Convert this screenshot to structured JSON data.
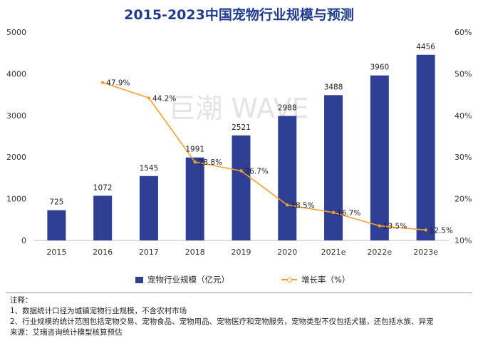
{
  "chart_data": {
    "type": "bar",
    "title": "2015-2023中国宠物行业规模与预测",
    "categories": [
      "2015",
      "2016",
      "2017",
      "2018",
      "2019",
      "2020",
      "2021e",
      "2022e",
      "2023e"
    ],
    "series": [
      {
        "name": "宠物行业规模（亿元）",
        "type": "bar",
        "axis": "left",
        "values": [
          725,
          1072,
          1545,
          1991,
          2521,
          2988,
          3488,
          3960,
          4456
        ],
        "color": "#2f3f94"
      },
      {
        "name": "增长率（%）",
        "type": "line",
        "axis": "right",
        "values": [
          null,
          47.9,
          44.2,
          28.8,
          26.7,
          18.5,
          16.7,
          13.5,
          12.5
        ],
        "labels": [
          "",
          "47.9%",
          "44.2%",
          "28.8%",
          "26.7%",
          "18.5%",
          "16.7%",
          "13.5%",
          "12.5%"
        ],
        "color": "#f5a02a"
      }
    ],
    "ylim": [
      0,
      5000
    ],
    "yticks": [
      "0",
      "1000",
      "2000",
      "3000",
      "4000",
      "5000"
    ],
    "y2lim": [
      10,
      60
    ],
    "y2ticks": [
      "10%",
      "20%",
      "30%",
      "40%",
      "50%",
      "60%"
    ],
    "legend_position": "bottom",
    "grid": false,
    "watermark": "巨潮 WAVE"
  },
  "notes": {
    "heading": "注释：",
    "line1": "1、数据统计口径为城镇宠物行业规模，不含农村市场",
    "line2": "2、行业规模的统计范围包括宠物交易、宠物食品、宠物用品、宠物医疗和宠物服务，宠物类型不仅包括犬猫，还包括水族、异宠",
    "source": "来源：艾瑞咨询统计模型核算预估"
  }
}
